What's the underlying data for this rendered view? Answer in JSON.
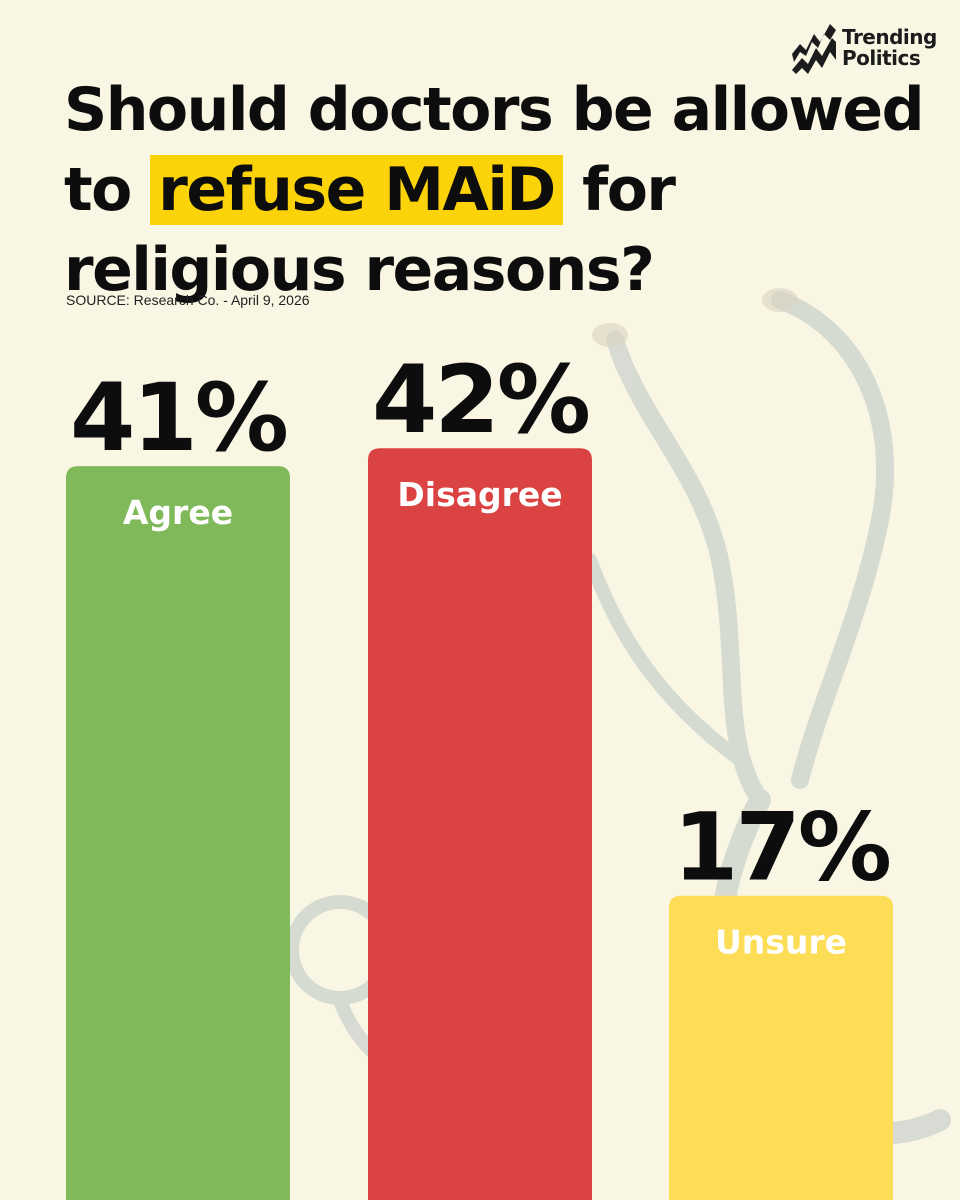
{
  "brand": {
    "line1": "Trending",
    "line2": "Politics"
  },
  "headline": {
    "part1": "Should doctors be allowed to ",
    "highlight": "refuse MAiD",
    "part2": " for religious reasons?"
  },
  "source": "SOURCE: Research Co. - April 9, 2026",
  "colors": {
    "background": "#faf6e4",
    "highlight": "#fcd209",
    "agree": "#80b95a",
    "disagree": "#db4242",
    "unsure": "#fcdd55"
  },
  "chart_data": {
    "type": "bar",
    "categories": [
      "Agree",
      "Disagree",
      "Unsure"
    ],
    "values": [
      41,
      42,
      17
    ],
    "value_labels": [
      "41%",
      "42%",
      "17%"
    ],
    "colors": [
      "#80b95a",
      "#db4242",
      "#fcdd55"
    ],
    "title": "",
    "xlabel": "",
    "ylabel": "",
    "ylim": [
      0,
      100
    ],
    "grid": false
  }
}
